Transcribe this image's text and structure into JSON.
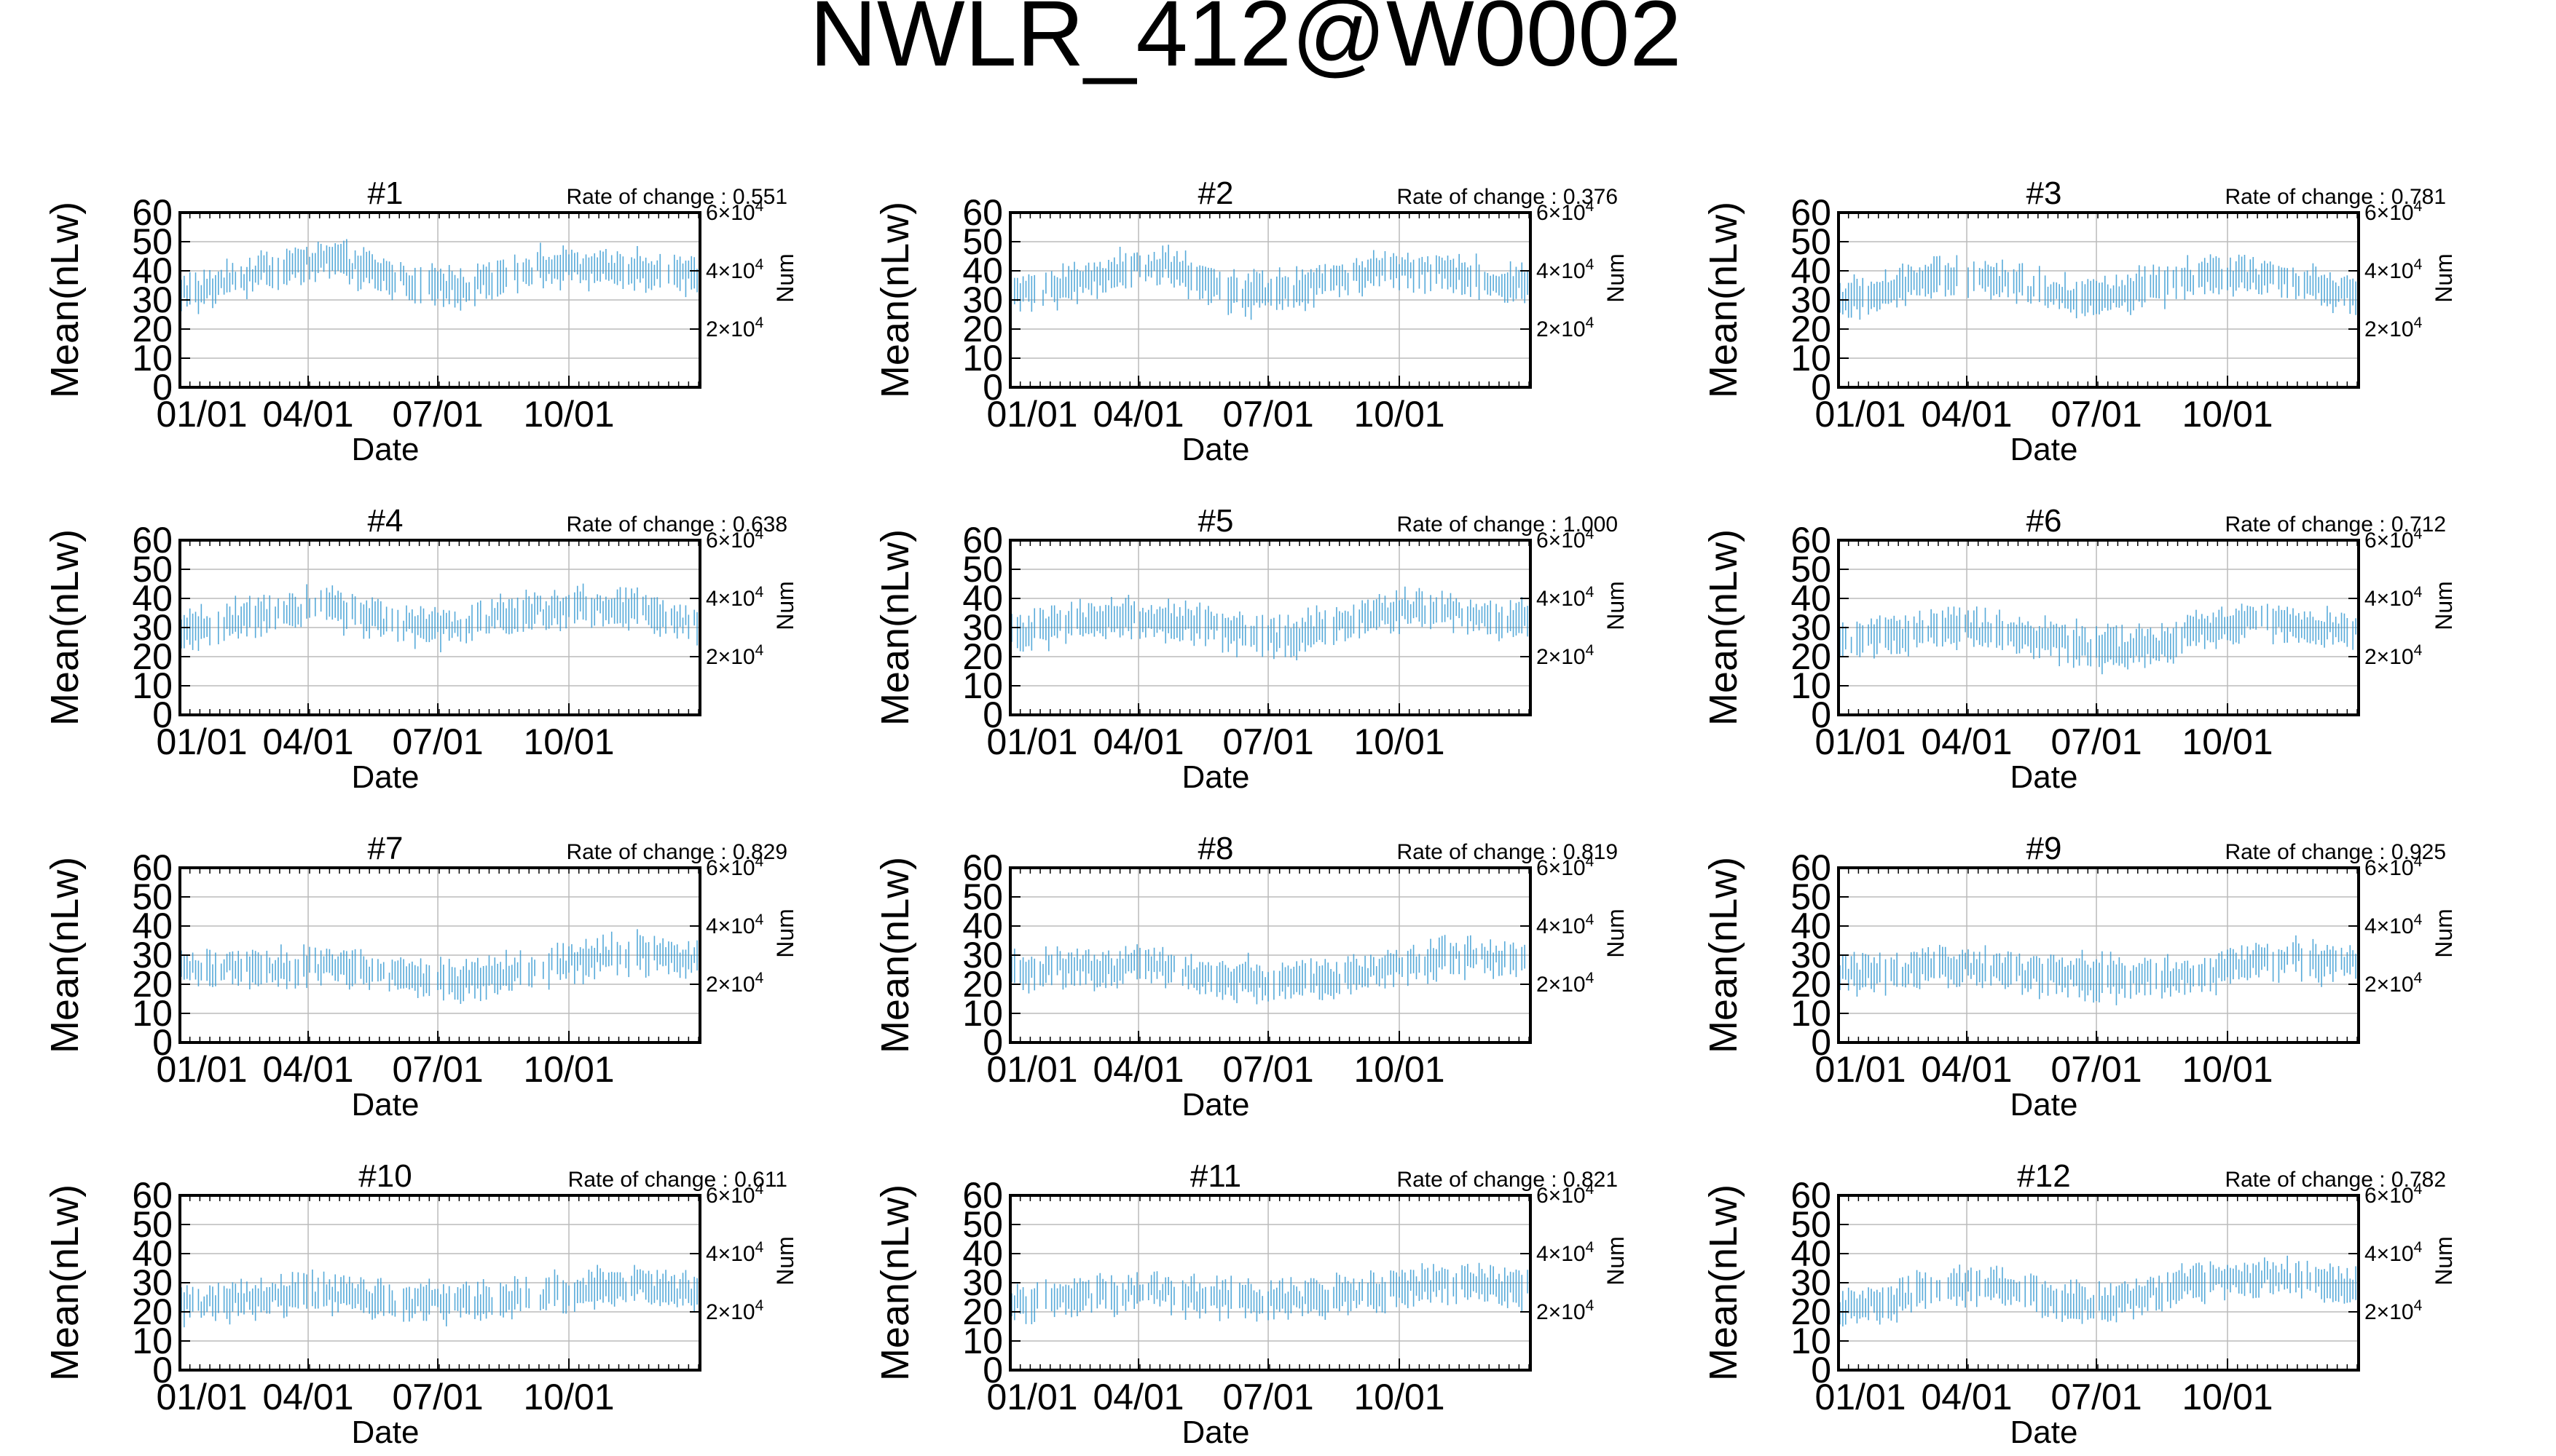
{
  "figure_title": "NWLR_412@W0002",
  "colors": {
    "series": "#3a9bd2",
    "axis": "#000000",
    "grid": "#bbbbbb"
  },
  "axis_text": {
    "ylabel": "Mean(nLw)",
    "xlabel": "Date",
    "y2label": "Num",
    "rate_prefix": "Rate of change : "
  },
  "x_axis": {
    "type": "date",
    "range": [
      "01/01",
      "12/31"
    ],
    "ticks": [
      "01/01",
      "04/01",
      "07/01",
      "10/01"
    ]
  },
  "y_axis": {
    "range": [
      0,
      60
    ],
    "ticks": [
      "0",
      "10",
      "20",
      "30",
      "40",
      "50",
      "60"
    ],
    "grid": true
  },
  "y2_axis": {
    "ticks": [
      {
        "base": "2×10",
        "exp": "4",
        "value": 20000
      },
      {
        "base": "4×10",
        "exp": "4",
        "value": 40000
      },
      {
        "base": "6×10",
        "exp": "4",
        "value": 60000
      }
    ]
  },
  "chart_data": [
    {
      "type": "scatter",
      "title": "#1",
      "rate": "0.551",
      "months": [
        "01/01",
        "02/01",
        "03/01",
        "04/01",
        "05/01",
        "06/01",
        "07/01",
        "08/01",
        "09/01",
        "10/01",
        "11/01",
        "12/01"
      ],
      "mean": [
        33,
        38,
        42,
        44,
        40,
        36,
        34,
        38,
        42,
        40,
        41,
        38
      ],
      "spread": [
        6,
        6,
        6,
        6,
        6,
        6,
        7,
        7,
        6,
        6,
        6,
        6
      ]
    },
    {
      "type": "scatter",
      "title": "#2",
      "rate": "0.376",
      "months": [
        "01/01",
        "02/01",
        "03/01",
        "04/01",
        "05/01",
        "06/01",
        "07/01",
        "08/01",
        "09/01",
        "10/01",
        "11/01",
        "12/01"
      ],
      "mean": [
        32,
        36,
        40,
        42,
        36,
        32,
        33,
        37,
        39,
        40,
        39,
        35
      ],
      "spread": [
        6,
        6,
        6,
        6,
        6,
        7,
        6,
        6,
        6,
        6,
        6,
        6
      ]
    },
    {
      "type": "scatter",
      "title": "#3",
      "rate": "0.781",
      "months": [
        "01/01",
        "02/01",
        "03/01",
        "04/01",
        "05/01",
        "06/01",
        "07/01",
        "08/01",
        "09/01",
        "10/01",
        "11/01",
        "12/01"
      ],
      "mean": [
        31,
        35,
        38,
        38,
        34,
        31,
        32,
        35,
        38,
        38,
        37,
        33
      ],
      "spread": [
        6,
        6,
        6,
        6,
        6,
        6,
        6,
        7,
        6,
        6,
        6,
        6
      ]
    },
    {
      "type": "scatter",
      "title": "#4",
      "rate": "0.638",
      "months": [
        "01/01",
        "02/01",
        "03/01",
        "04/01",
        "05/01",
        "06/01",
        "07/01",
        "08/01",
        "09/01",
        "10/01",
        "11/01",
        "12/01"
      ],
      "mean": [
        30,
        33,
        36,
        37,
        33,
        30,
        30,
        34,
        36,
        37,
        36,
        32
      ],
      "spread": [
        6,
        6,
        6,
        6,
        6,
        6,
        6,
        6,
        6,
        6,
        6,
        6
      ]
    },
    {
      "type": "scatter",
      "title": "#5",
      "rate": "1.000",
      "months": [
        "01/01",
        "02/01",
        "03/01",
        "04/01",
        "05/01",
        "06/01",
        "07/01",
        "08/01",
        "09/01",
        "10/01",
        "11/01",
        "12/01"
      ],
      "mean": [
        29,
        31,
        33,
        33,
        31,
        28,
        27,
        31,
        35,
        37,
        35,
        32
      ],
      "spread": [
        6,
        6,
        6,
        6,
        6,
        7,
        7,
        6,
        6,
        6,
        6,
        6
      ]
    },
    {
      "type": "scatter",
      "title": "#6",
      "rate": "0.712",
      "months": [
        "01/01",
        "02/01",
        "03/01",
        "04/01",
        "05/01",
        "06/01",
        "07/01",
        "08/01",
        "09/01",
        "10/01",
        "11/01",
        "12/01"
      ],
      "mean": [
        26,
        28,
        30,
        29,
        27,
        24,
        22,
        24,
        30,
        32,
        32,
        29
      ],
      "spread": [
        6,
        6,
        6,
        6,
        6,
        7,
        7,
        6,
        6,
        6,
        6,
        6
      ]
    },
    {
      "type": "scatter",
      "title": "#7",
      "rate": "0.829",
      "months": [
        "01/01",
        "02/01",
        "03/01",
        "04/01",
        "05/01",
        "06/01",
        "07/01",
        "08/01",
        "09/01",
        "10/01",
        "11/01",
        "12/01"
      ],
      "mean": [
        25,
        26,
        26,
        26,
        24,
        22,
        21,
        23,
        26,
        29,
        31,
        29
      ],
      "spread": [
        6,
        6,
        6,
        6,
        6,
        6,
        6,
        6,
        6,
        6,
        6,
        6
      ]
    },
    {
      "type": "scatter",
      "title": "#8",
      "rate": "0.819",
      "months": [
        "01/01",
        "02/01",
        "03/01",
        "04/01",
        "05/01",
        "06/01",
        "07/01",
        "08/01",
        "09/01",
        "10/01",
        "11/01",
        "12/01"
      ],
      "mean": [
        25,
        26,
        26,
        26,
        23,
        22,
        21,
        22,
        25,
        28,
        30,
        28
      ],
      "spread": [
        6,
        6,
        6,
        6,
        6,
        7,
        7,
        6,
        6,
        6,
        6,
        6
      ]
    },
    {
      "type": "scatter",
      "title": "#9",
      "rate": "0.925",
      "months": [
        "01/01",
        "02/01",
        "03/01",
        "04/01",
        "05/01",
        "06/01",
        "07/01",
        "08/01",
        "09/01",
        "10/01",
        "11/01",
        "12/01"
      ],
      "mean": [
        24,
        25,
        26,
        25,
        24,
        23,
        22,
        22,
        24,
        27,
        29,
        27
      ],
      "spread": [
        6,
        6,
        6,
        6,
        7,
        7,
        7,
        6,
        6,
        6,
        6,
        6
      ]
    },
    {
      "type": "scatter",
      "title": "#10",
      "rate": "0.611",
      "months": [
        "01/01",
        "02/01",
        "03/01",
        "04/01",
        "05/01",
        "06/01",
        "07/01",
        "08/01",
        "09/01",
        "10/01",
        "11/01",
        "12/01"
      ],
      "mean": [
        23,
        25,
        26,
        26,
        24,
        23,
        23,
        24,
        26,
        28,
        29,
        27
      ],
      "spread": [
        6,
        6,
        6,
        6,
        6,
        6,
        6,
        6,
        6,
        6,
        6,
        6
      ]
    },
    {
      "type": "scatter",
      "title": "#11",
      "rate": "0.821",
      "months": [
        "01/01",
        "02/01",
        "03/01",
        "04/01",
        "05/01",
        "06/01",
        "07/01",
        "08/01",
        "09/01",
        "10/01",
        "11/01",
        "12/01"
      ],
      "mean": [
        23,
        25,
        26,
        27,
        25,
        24,
        24,
        25,
        27,
        29,
        30,
        28
      ],
      "spread": [
        6,
        6,
        6,
        6,
        6,
        6,
        6,
        6,
        6,
        6,
        6,
        6
      ]
    },
    {
      "type": "scatter",
      "title": "#12",
      "rate": "0.782",
      "months": [
        "01/01",
        "02/01",
        "03/01",
        "04/01",
        "05/01",
        "06/01",
        "07/01",
        "08/01",
        "09/01",
        "10/01",
        "11/01",
        "12/01"
      ],
      "mean": [
        22,
        25,
        28,
        30,
        26,
        22,
        24,
        27,
        30,
        32,
        32,
        29
      ],
      "spread": [
        6,
        6,
        6,
        6,
        6,
        7,
        6,
        6,
        6,
        6,
        6,
        6
      ]
    }
  ]
}
